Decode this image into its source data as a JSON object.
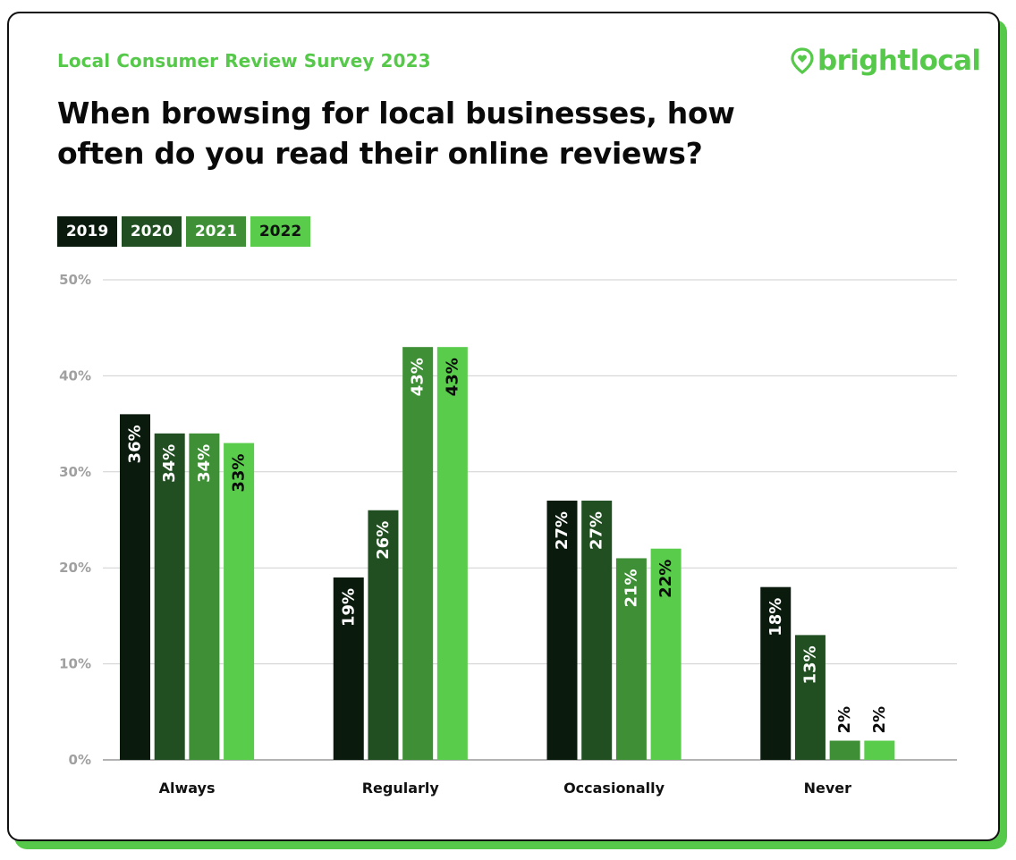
{
  "header": {
    "kicker": "Local Consumer Review Survey 2023",
    "title_line1": "When browsing for local businesses, how",
    "title_line2": "often do you read their online reviews?"
  },
  "brand": {
    "logo_text": "brightlocal",
    "logo_icon": "map-pin-heart-icon",
    "color": "#56c94a"
  },
  "legend": [
    {
      "label": "2019",
      "color": "#0a1a0d"
    },
    {
      "label": "2020",
      "color": "#214f22"
    },
    {
      "label": "2021",
      "color": "#3f8f37"
    },
    {
      "label": "2022",
      "color": "#59cc4c"
    }
  ],
  "chart_data": {
    "type": "bar",
    "categories": [
      "Always",
      "Regularly",
      "Occasionally",
      "Never"
    ],
    "series": [
      {
        "name": "2019",
        "values": [
          36,
          19,
          27,
          18
        ],
        "labels": [
          "36%",
          "19%",
          "27%",
          "18%"
        ],
        "color": "#0a1a0d"
      },
      {
        "name": "2020",
        "values": [
          34,
          26,
          27,
          13
        ],
        "labels": [
          "34%",
          "26%",
          "27%",
          "13%"
        ],
        "color": "#214f22"
      },
      {
        "name": "2021",
        "values": [
          34,
          43,
          21,
          2
        ],
        "labels": [
          "34%",
          "43%",
          "21%",
          "2%"
        ],
        "color": "#3f8f37"
      },
      {
        "name": "2022",
        "values": [
          33,
          43,
          22,
          2
        ],
        "labels": [
          "33%",
          "43%",
          "22%",
          "2%"
        ],
        "color": "#59cc4c"
      }
    ],
    "yticks": [
      "0%",
      "10%",
      "20%",
      "30%",
      "40%",
      "50%"
    ],
    "ylim": [
      0,
      50
    ],
    "grid": true,
    "legend_position": "top-left"
  }
}
